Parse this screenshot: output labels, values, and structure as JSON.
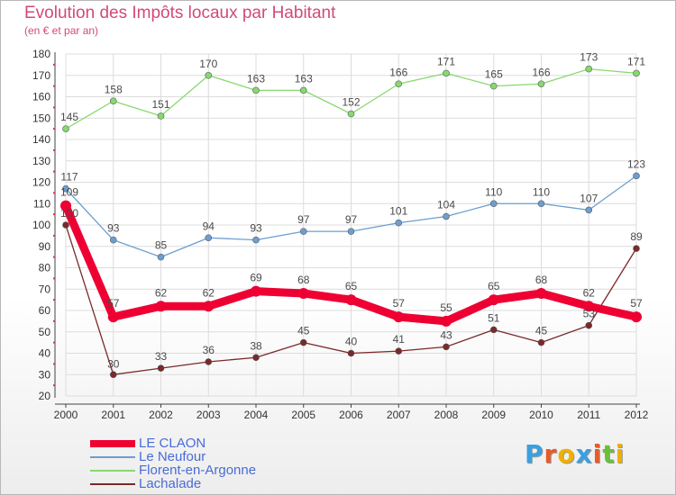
{
  "chart_data": {
    "type": "line",
    "title": "Evolution des Impôts locaux par Habitant",
    "subtitle": "(en € et par an)",
    "xlabel": "",
    "ylabel": "",
    "x": [
      "2000",
      "2001",
      "2002",
      "2003",
      "2004",
      "2005",
      "2006",
      "2007",
      "2008",
      "2009",
      "2010",
      "2011",
      "2012"
    ],
    "ylim": [
      20,
      180
    ],
    "yticks": [
      20,
      30,
      40,
      50,
      60,
      70,
      80,
      90,
      100,
      110,
      120,
      130,
      140,
      150,
      160,
      170,
      180
    ],
    "grid": true,
    "legend_position": "bottom-left",
    "series": [
      {
        "name": "LE CLAON",
        "color": "#ee0033",
        "values": [
          109,
          57,
          62,
          62,
          69,
          68,
          65,
          57,
          55,
          65,
          68,
          62,
          57
        ]
      },
      {
        "name": "Le Neufour",
        "color": "#6c9fd0",
        "values": [
          117,
          93,
          85,
          94,
          93,
          97,
          97,
          101,
          104,
          110,
          110,
          107,
          123
        ]
      },
      {
        "name": "Florent-en-Argonne",
        "color": "#88d870",
        "values": [
          145,
          158,
          151,
          170,
          163,
          163,
          152,
          166,
          171,
          165,
          166,
          173,
          171
        ]
      },
      {
        "name": "Lachalade",
        "color": "#7a2a2a",
        "values": [
          100,
          30,
          33,
          36,
          38,
          45,
          40,
          41,
          43,
          51,
          45,
          53,
          89
        ]
      }
    ]
  },
  "logo": {
    "letters": [
      "P",
      "r",
      "o",
      "x",
      "i",
      "t",
      "i"
    ],
    "colors": [
      "#3aa0e0",
      "#e85a2a",
      "#f0b000",
      "#3aa0e0",
      "#e85a2a",
      "#6abf3a",
      "#f0b000"
    ]
  }
}
